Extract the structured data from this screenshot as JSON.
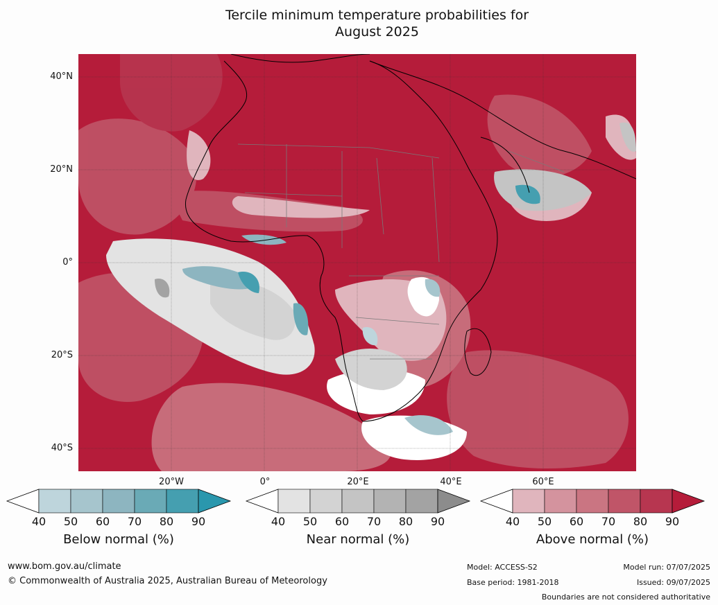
{
  "title_line1": "Tercile minimum temperature probabilities for",
  "title_line2": "August 2025",
  "lat_labels": [
    "40°N",
    "20°N",
    "0°",
    "20°S",
    "40°S"
  ],
  "lon_labels": [
    "20°W",
    "0°",
    "20°E",
    "40°E",
    "60°E"
  ],
  "legends": [
    {
      "title": "Below normal (%)",
      "ticks": [
        "40",
        "50",
        "60",
        "70",
        "80",
        "90"
      ],
      "colors": [
        "#ffffff",
        "#bed5dc",
        "#a6c5cd",
        "#8db5c0",
        "#6aaab6",
        "#459fb0",
        "#2a97ad"
      ]
    },
    {
      "title": "Near normal (%)",
      "ticks": [
        "40",
        "50",
        "60",
        "70",
        "80",
        "90"
      ],
      "colors": [
        "#ffffff",
        "#e3e3e3",
        "#d3d3d3",
        "#c4c4c4",
        "#b3b3b3",
        "#a3a3a3",
        "#8c8c8c"
      ]
    },
    {
      "title": "Above normal (%)",
      "ticks": [
        "40",
        "50",
        "60",
        "70",
        "80",
        "90"
      ],
      "colors": [
        "#ffffff",
        "#e0b5bd",
        "#d4939e",
        "#ca7582",
        "#c05568",
        "#b73650",
        "#b51c3a"
      ]
    }
  ],
  "footer": {
    "website": "www.bom.gov.au/climate",
    "copyright": "© Commonwealth of Australia 2025, Australian Bureau of Meteorology",
    "model": "Model: ACCESS-S2",
    "base_period": "Base period: 1981-2018",
    "model_run": "Model run: 07/07/2025",
    "issued": "Issued: 09/07/2025",
    "disclaimer": "Boundaries are not considered authoritative"
  }
}
